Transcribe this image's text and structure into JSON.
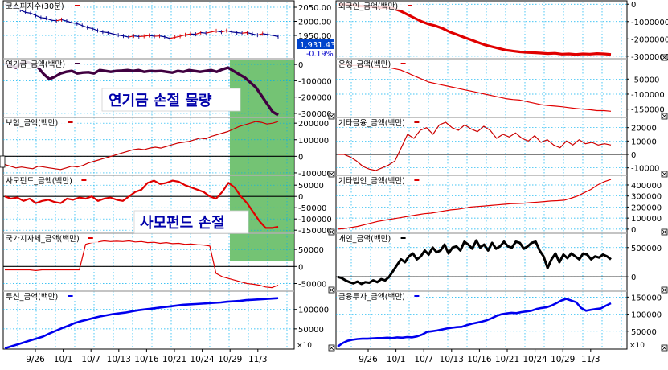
{
  "colors": {
    "grid": "#00b0f0",
    "separator": "#b0b0b0",
    "red": "#e00000",
    "darkred": "#cc0000",
    "purple": "#400040",
    "black": "#000000",
    "blue": "#0000ee",
    "highlight": "#5cb85c",
    "price_line": "#000090",
    "price_up": "#e00000",
    "price_badge_bg": "#0044cc",
    "price_badge_text": "#ffffff",
    "change_text": "#0000cc"
  },
  "chart_data": [
    {
      "type": "line",
      "panel": "left",
      "title": "코스피지수(30분)",
      "price_label": "1,931.43",
      "change_label": "-0.19%",
      "ylim": [
        1870,
        2070
      ],
      "yticks": [
        "2050.00",
        "2000.00",
        "1950.00"
      ],
      "ytick_values": [
        2050,
        2000,
        1950
      ],
      "series": [
        {
          "color_key": "price_line",
          "values": [
            2060,
            2057,
            2052,
            2040,
            2032,
            2029,
            2021,
            2013,
            2011,
            2004,
            2002,
            2006,
            2001,
            1995,
            1992,
            1985,
            1978,
            1974,
            1967,
            1962,
            1960,
            1955,
            1951,
            1948,
            1944,
            1948,
            1946,
            1947,
            1950,
            1947,
            1948,
            1945,
            1939,
            1943,
            1947,
            1952,
            1955,
            1954,
            1960,
            1958,
            1962,
            1966,
            1962,
            1967,
            1962,
            1960,
            1958,
            1960,
            1955,
            1951,
            1956,
            1953,
            1950,
            1946
          ]
        }
      ]
    },
    {
      "type": "line",
      "panel": "left",
      "title": "연기금_금액(백만)",
      "annotation": "연기금 손절 물량",
      "ylim": [
        -320000,
        30000
      ],
      "yticks": [
        "0",
        "-100000",
        "-200000",
        "-300000"
      ],
      "ytick_values": [
        0,
        -100000,
        -200000,
        -300000
      ],
      "zero_line": false,
      "series": [
        {
          "color_key": "purple",
          "width": 3.4,
          "values": [
            10000,
            -10000,
            -20000,
            10000,
            15000,
            0,
            -20000,
            -60000,
            -90000,
            -75000,
            -55000,
            -45000,
            -40000,
            -55000,
            -50000,
            -48000,
            -55000,
            -35000,
            -40000,
            -45000,
            -40000,
            -38000,
            -35000,
            -40000,
            -35000,
            -45000,
            -40000,
            -42000,
            -40000,
            -45000,
            -50000,
            -40000,
            -45000,
            -35000,
            -40000,
            -45000,
            -40000,
            -35000,
            -45000,
            -30000,
            -20000,
            -40000,
            -60000,
            -80000,
            -110000,
            -140000,
            -190000,
            -240000,
            -290000,
            -310000
          ]
        }
      ]
    },
    {
      "type": "line",
      "panel": "left",
      "title": "보험_금액(백만)",
      "ylim": [
        -110000,
        230000
      ],
      "yticks": [
        "200000",
        "100000",
        "0",
        "-100000"
      ],
      "ytick_values": [
        200000,
        100000,
        0,
        -100000
      ],
      "zero_line": true,
      "series": [
        {
          "color_key": "darkred",
          "width": 1.2,
          "values": [
            -50000,
            -60000,
            -70000,
            -65000,
            -70000,
            -75000,
            -60000,
            -65000,
            -70000,
            -75000,
            -80000,
            -70000,
            -60000,
            -65000,
            -55000,
            -40000,
            -30000,
            -20000,
            -10000,
            0,
            10000,
            20000,
            30000,
            40000,
            45000,
            40000,
            50000,
            55000,
            50000,
            60000,
            70000,
            80000,
            85000,
            90000,
            100000,
            110000,
            105000,
            120000,
            130000,
            140000,
            150000,
            165000,
            180000,
            190000,
            200000,
            210000,
            205000,
            195000,
            200000,
            210000
          ]
        }
      ]
    },
    {
      "type": "line",
      "panel": "left",
      "title": "사모펀드_금액(백만)",
      "annotation": "사모펀드 손절",
      "ylim": [
        -160000,
        90000
      ],
      "yticks": [
        "50000",
        "0",
        "-50000",
        "-100000",
        "-150000"
      ],
      "ytick_values": [
        50000,
        0,
        -50000,
        -100000,
        -150000
      ],
      "zero_line": true,
      "series": [
        {
          "color_key": "red",
          "width": 2.2,
          "values": [
            0,
            -10000,
            -5000,
            -20000,
            -10000,
            -30000,
            -20000,
            -15000,
            -25000,
            -30000,
            -10000,
            -15000,
            -5000,
            -10000,
            0,
            -20000,
            -10000,
            -5000,
            -15000,
            -20000,
            0,
            20000,
            30000,
            60000,
            70000,
            55000,
            60000,
            70000,
            65000,
            50000,
            40000,
            30000,
            20000,
            0,
            -10000,
            20000,
            60000,
            40000,
            0,
            -30000,
            -70000,
            -110000,
            -140000,
            -140000,
            -135000
          ]
        }
      ]
    },
    {
      "type": "line",
      "panel": "left",
      "title": "국가지자체_금액(백만)",
      "ylim": [
        -70000,
        95000
      ],
      "yticks": [
        "50000",
        "0",
        "-50000"
      ],
      "ytick_values": [
        50000,
        0,
        -50000
      ],
      "zero_line": true,
      "series": [
        {
          "color_key": "red",
          "width": 1.2,
          "values": [
            -10000,
            -10000,
            -10000,
            -10000,
            -10000,
            -12000,
            -10000,
            -10000,
            -10000,
            -10000,
            -10000,
            -10000,
            -10000,
            65000,
            70000,
            72000,
            75000,
            73000,
            74000,
            73000,
            75000,
            72000,
            73000,
            70000,
            71000,
            68000,
            70000,
            67000,
            68000,
            65000,
            66000,
            64000,
            63000,
            60000,
            -20000,
            -30000,
            -35000,
            -40000,
            -45000,
            -50000,
            -52000,
            -55000,
            -60000,
            -62000,
            -55000
          ]
        }
      ]
    },
    {
      "type": "line",
      "panel": "left",
      "title": "투신_금액(백만)",
      "ylim": [
        0,
        145000
      ],
      "yticks": [
        "100000",
        "50000"
      ],
      "ytick_values": [
        100000,
        50000
      ],
      "zero_line": false,
      "series": [
        {
          "color_key": "blue",
          "width": 2.6,
          "values": [
            0,
            5000,
            10000,
            15000,
            20000,
            25000,
            30000,
            38000,
            45000,
            52000,
            58000,
            65000,
            70000,
            74000,
            78000,
            82000,
            85000,
            88000,
            90000,
            92000,
            95000,
            98000,
            100000,
            102000,
            104000,
            106000,
            108000,
            110000,
            112000,
            113000,
            114000,
            115000,
            116000,
            117000,
            118000,
            120000,
            121000,
            122000,
            124000,
            125000,
            126000,
            127000,
            128000,
            129000
          ]
        }
      ]
    },
    {
      "type": "line",
      "panel": "right",
      "title": "외국인_금액(백만)",
      "ylim": [
        -3100000,
        150000
      ],
      "yticks": [
        "0",
        "-1000000",
        "-2000000",
        "-3000000"
      ],
      "ytick_values": [
        0,
        -1000000,
        -2000000,
        -3000000
      ],
      "zero_line": false,
      "series": [
        {
          "color_key": "red",
          "width": 3.2,
          "values": [
            0,
            -20000,
            -40000,
            -100000,
            -120000,
            -150000,
            -200000,
            -180000,
            -250000,
            -400000,
            -600000,
            -800000,
            -1000000,
            -1150000,
            -1250000,
            -1400000,
            -1600000,
            -1750000,
            -1900000,
            -2050000,
            -2200000,
            -2350000,
            -2450000,
            -2550000,
            -2650000,
            -2700000,
            -2750000,
            -2780000,
            -2800000,
            -2820000,
            -2850000,
            -2830000,
            -2880000,
            -2870000,
            -2900000,
            -2870000,
            -2880000,
            -2850000,
            -2870000,
            -2900000
          ]
        }
      ]
    },
    {
      "type": "line",
      "panel": "right",
      "title": "은행_금액(백만)",
      "ylim": [
        -175000,
        15000
      ],
      "yticks": [
        "-50000",
        "-100000",
        "-150000"
      ],
      "ytick_values": [
        -50000,
        -100000,
        -150000
      ],
      "zero_line": false,
      "series": [
        {
          "color_key": "red",
          "width": 1.2,
          "values": [
            0,
            -2000,
            -5000,
            -4000,
            -8000,
            -10000,
            -12000,
            -10000,
            -15000,
            -20000,
            -30000,
            -40000,
            -50000,
            -60000,
            -65000,
            -70000,
            -75000,
            -80000,
            -85000,
            -90000,
            -95000,
            -100000,
            -105000,
            -110000,
            -115000,
            -118000,
            -120000,
            -125000,
            -130000,
            -135000,
            -138000,
            -140000,
            -142000,
            -145000,
            -148000,
            -150000,
            -152000,
            -155000,
            -155000,
            -157000
          ]
        }
      ]
    },
    {
      "type": "line",
      "panel": "right",
      "title": "기타금융_금액(백만)",
      "ylim": [
        -15000,
        27000
      ],
      "yticks": [
        "20000",
        "10000",
        "0",
        "-10000"
      ],
      "ytick_values": [
        20000,
        10000,
        0,
        -10000
      ],
      "zero_line": true,
      "series": [
        {
          "color_key": "darkred",
          "width": 1.2,
          "values": [
            0,
            0,
            -2000,
            -5000,
            -9000,
            -11000,
            -12000,
            -10000,
            -8000,
            -5000,
            5000,
            15000,
            12000,
            18000,
            20000,
            15000,
            22000,
            24000,
            20000,
            18000,
            22000,
            19000,
            17000,
            21000,
            18000,
            12000,
            15000,
            13000,
            16000,
            12000,
            10000,
            14000,
            9000,
            11000,
            7000,
            5000,
            10000,
            7000,
            11000,
            8000,
            9000,
            7000,
            8000,
            7000
          ]
        }
      ]
    },
    {
      "type": "line",
      "panel": "right",
      "title": "기타법인_금액(백만)",
      "ylim": [
        -30000,
        480000
      ],
      "yticks": [
        "400000",
        "300000",
        "200000",
        "100000",
        "0"
      ],
      "ytick_values": [
        400000,
        300000,
        200000,
        100000,
        0
      ],
      "zero_line": false,
      "series": [
        {
          "color_key": "red",
          "width": 1.2,
          "values": [
            0,
            5000,
            15000,
            25000,
            40000,
            55000,
            70000,
            80000,
            90000,
            100000,
            110000,
            120000,
            130000,
            140000,
            145000,
            155000,
            165000,
            175000,
            180000,
            190000,
            200000,
            205000,
            210000,
            215000,
            220000,
            225000,
            230000,
            232000,
            235000,
            240000,
            245000,
            250000,
            255000,
            258000,
            262000,
            280000,
            300000,
            330000,
            360000,
            400000,
            430000,
            450000
          ]
        }
      ]
    },
    {
      "type": "line",
      "panel": "right",
      "title": "개인_금액(백만)",
      "ylim": [
        -230000,
        730000
      ],
      "yticks": [
        "500000",
        "0"
      ],
      "ytick_values": [
        500000,
        0
      ],
      "zero_line": true,
      "series": [
        {
          "color_key": "black",
          "width": 3,
          "values": [
            0,
            -20000,
            -60000,
            -90000,
            -110000,
            -80000,
            -120000,
            -90000,
            -100000,
            -60000,
            -90000,
            -40000,
            -60000,
            0,
            100000,
            200000,
            300000,
            250000,
            350000,
            400000,
            300000,
            350000,
            450000,
            380000,
            500000,
            420000,
            450000,
            550000,
            400000,
            500000,
            520000,
            450000,
            600000,
            550000,
            480000,
            620000,
            500000,
            550000,
            450000,
            580000,
            480000,
            520000,
            600000,
            520000,
            500000,
            600000,
            580000,
            480000,
            520000,
            580000,
            600000,
            450000,
            350000,
            150000,
            300000,
            400000,
            250000,
            380000,
            320000,
            400000,
            350000,
            300000,
            400000,
            380000,
            300000,
            350000,
            330000,
            380000,
            350000,
            300000
          ]
        }
      ]
    },
    {
      "type": "line",
      "panel": "right",
      "title": "금융투자_금액(백만)",
      "ylim": [
        0,
        165000
      ],
      "yticks": [
        "150000",
        "100000",
        "50000"
      ],
      "ytick_values": [
        150000,
        100000,
        50000
      ],
      "zero_line": false,
      "series": [
        {
          "color_key": "blue",
          "width": 2.6,
          "values": [
            5000,
            15000,
            22000,
            25000,
            27000,
            28000,
            28000,
            29000,
            30000,
            30000,
            31000,
            30000,
            32000,
            31000,
            33000,
            32000,
            35000,
            40000,
            48000,
            50000,
            52000,
            55000,
            58000,
            60000,
            62000,
            63000,
            68000,
            72000,
            75000,
            78000,
            82000,
            88000,
            95000,
            100000,
            102000,
            104000,
            103000,
            106000,
            108000,
            110000,
            115000,
            118000,
            120000,
            125000,
            132000,
            140000,
            145000,
            140000,
            135000,
            118000,
            110000,
            113000,
            115000,
            117000,
            125000,
            132000
          ]
        }
      ]
    }
  ],
  "axis": {
    "left_dates": [
      "9/26",
      "10/1",
      "10/7",
      "10/13",
      "10/16",
      "10/21",
      "10/24",
      "10/29",
      "11/3"
    ],
    "right_dates": [
      "9/26",
      "10/1",
      "10/7",
      "10/13",
      "10/16",
      "10/21",
      "10/24",
      "10/29",
      "11/3"
    ],
    "multiplier": "×10"
  }
}
